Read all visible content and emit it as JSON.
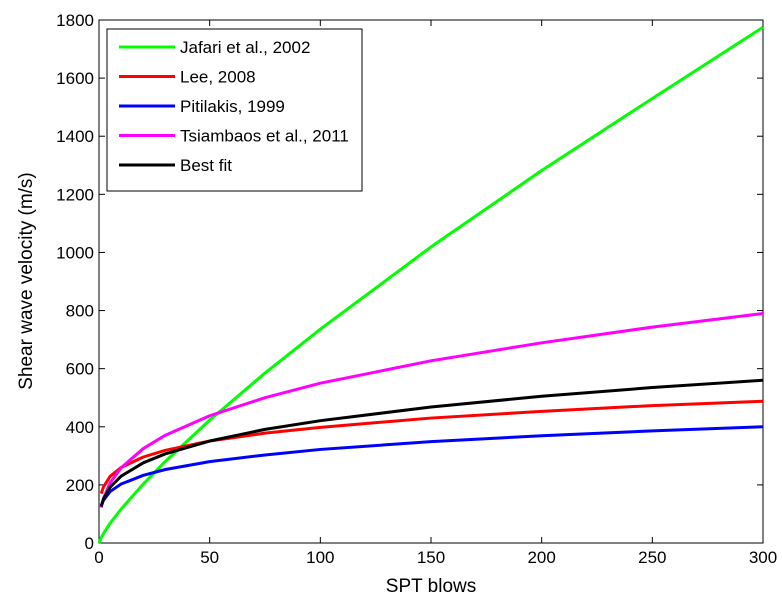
{
  "chart_data": {
    "type": "line",
    "x_label": "SPT blows",
    "y_label": "Shear wave velocity (m/s)",
    "x": [
      0,
      1,
      2,
      5,
      10,
      20,
      30,
      50,
      75,
      100,
      150,
      200,
      250,
      300
    ],
    "series": [
      {
        "name": "Jafari et al., 2002",
        "color": "#00ff00",
        "values": [
          0,
          18.5,
          32,
          68,
          117,
          203,
          281,
          423,
          585,
          736,
          1019,
          1282,
          1530,
          1775
        ]
      },
      {
        "name": "Lee, 2008",
        "color": "#ff0000",
        "values": [
          null,
          170,
          193,
          229,
          260,
          296,
          319,
          351,
          378,
          398,
          430,
          453,
          473,
          488
        ]
      },
      {
        "name": "Pitilakis, 1999",
        "color": "#0000ff",
        "values": [
          null,
          128,
          147,
          177,
          203,
          233,
          253,
          280,
          303,
          322,
          349,
          369,
          386,
          400
        ]
      },
      {
        "name": "Tsiambaos et al., 2011",
        "color": "#ff00ff",
        "values": [
          null,
          122,
          153,
          207,
          259,
          325,
          371,
          438,
          500,
          550,
          627,
          689,
          743,
          790
        ]
      },
      {
        "name": "Best fit",
        "color": "#000000",
        "values": [
          null,
          126,
          151,
          192,
          230,
          276,
          307,
          351,
          391,
          421,
          468,
          505,
          535,
          560
        ]
      }
    ],
    "xlim": [
      0,
      300
    ],
    "xticks": [
      0,
      50,
      100,
      150,
      200,
      250,
      300
    ],
    "ylim": [
      0,
      1800
    ],
    "yticks": [
      0,
      200,
      400,
      600,
      800,
      1000,
      1200,
      1400,
      1600,
      1800
    ],
    "legend": "upper left",
    "grid": false
  }
}
